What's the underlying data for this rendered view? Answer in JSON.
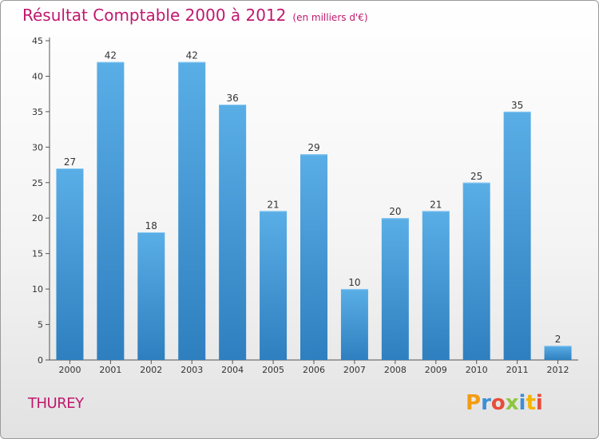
{
  "header": {
    "title": "Résultat Comptable 2000 à 2012",
    "subtitle": "(en milliers d'€)"
  },
  "footer": {
    "commune": "THUREY",
    "logo_text": "Proxiti"
  },
  "colors": {
    "title": "#c0186e",
    "bar_top": "#5aaee6",
    "bar_bottom": "#2e7fbf"
  },
  "chart_data": {
    "type": "bar",
    "title": "Résultat Comptable 2000 à 2012",
    "subtitle": "(en milliers d'€)",
    "xlabel": "",
    "ylabel": "",
    "categories": [
      "2000",
      "2001",
      "2002",
      "2003",
      "2004",
      "2005",
      "2006",
      "2007",
      "2008",
      "2009",
      "2010",
      "2011",
      "2012"
    ],
    "values": [
      27,
      42,
      18,
      42,
      36,
      21,
      29,
      10,
      20,
      21,
      25,
      35,
      2
    ],
    "ylim": [
      0,
      45
    ],
    "yticks": [
      0,
      5,
      10,
      15,
      20,
      25,
      30,
      35,
      40,
      45
    ],
    "grid": false,
    "data_labels": true
  }
}
